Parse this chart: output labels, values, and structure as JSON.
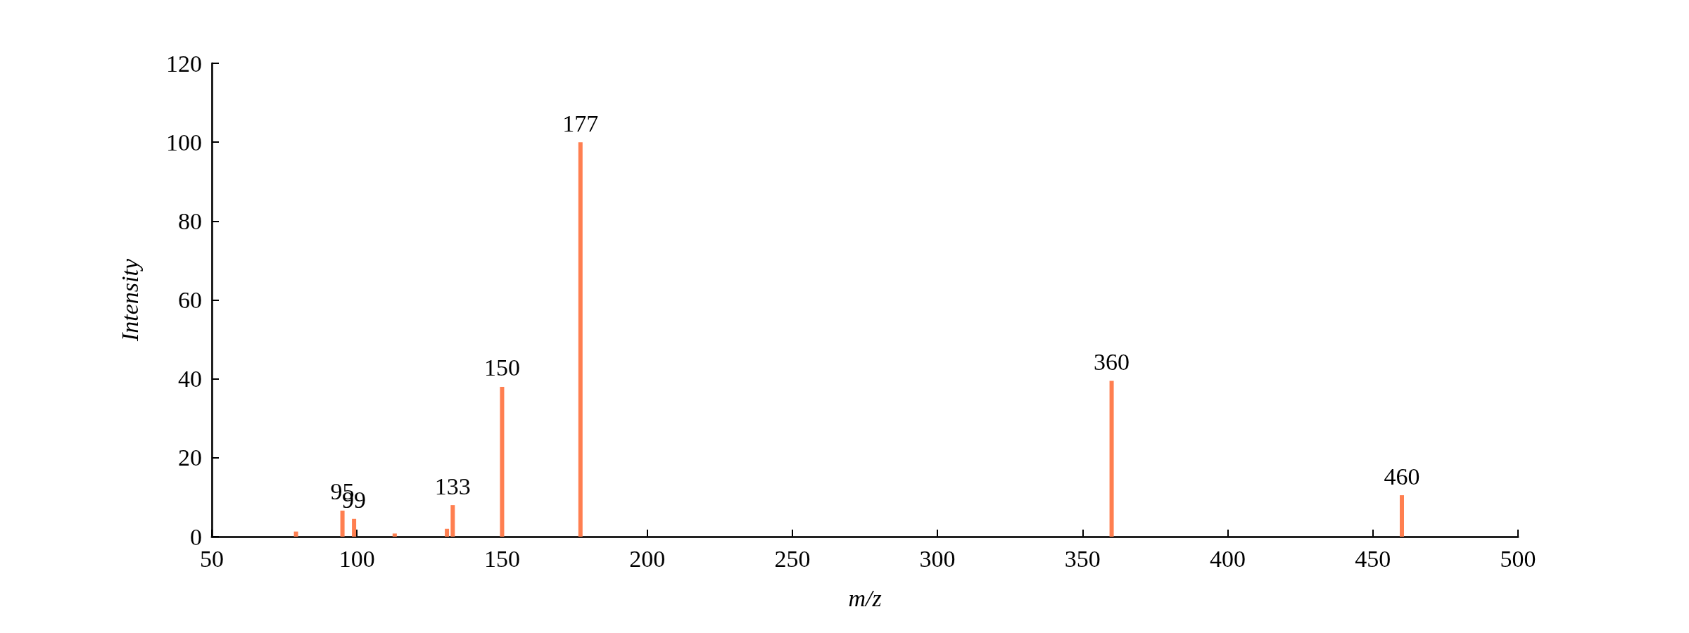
{
  "chart_data": {
    "type": "bar",
    "xlabel": "m/z",
    "ylabel": "Intensity",
    "x": [
      79,
      95,
      99,
      113,
      131,
      133,
      150,
      177,
      360,
      460
    ],
    "series": [
      {
        "color": "#ff7f50",
        "values": [
          1.3,
          6.6,
          4.5,
          0.8,
          2.0,
          8.0,
          38,
          100,
          39.5,
          10.5
        ]
      }
    ],
    "annotations": [
      {
        "text": "95",
        "x": 95,
        "y": 6.6
      },
      {
        "text": "99",
        "x": 99,
        "y": 4.5
      },
      {
        "text": "133",
        "x": 133,
        "y": 8.0
      },
      {
        "text": "150",
        "x": 150,
        "y": 38
      },
      {
        "text": "177",
        "x": 177,
        "y": 100
      },
      {
        "text": "360",
        "x": 360,
        "y": 39.5
      },
      {
        "text": "460",
        "x": 460,
        "y": 10.5
      }
    ],
    "xlim": [
      50,
      500
    ],
    "xticks": [
      50,
      100,
      150,
      200,
      250,
      300,
      350,
      400,
      450,
      500
    ],
    "ylim": [
      0,
      120
    ],
    "yticks": [
      0,
      20,
      40,
      60,
      80,
      100,
      120
    ],
    "grid": false
  }
}
